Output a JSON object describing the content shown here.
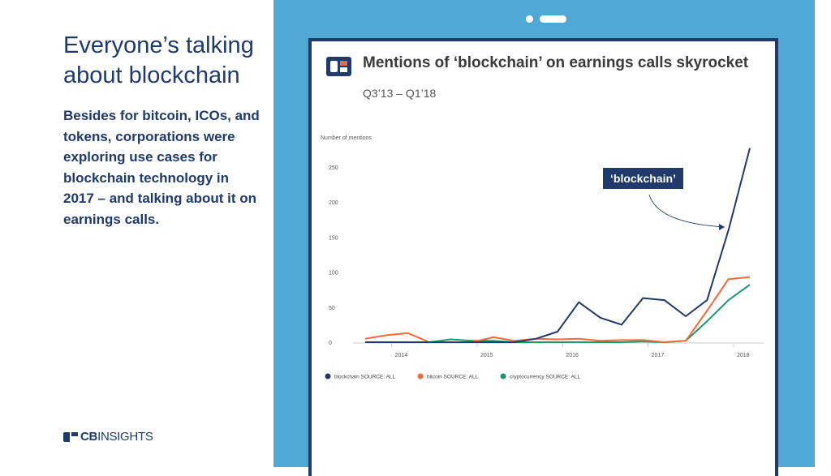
{
  "slide": {
    "title": "Everyone’s talking about blockchain",
    "body": "Besides for bitcoin, ICOs, and tokens, corporations were exploring use cases for blockchain technology in 2017 – and talking about it on earnings calls.",
    "logo_bold": "CB",
    "logo_light": "INSIGHTS"
  },
  "colors": {
    "navy": "#1f3a6b",
    "panel_blue": "#4fa9d4",
    "blockchain": "#1f3a6b",
    "bitcoin": "#f26b3a",
    "cryptocurrency": "#1a9a6c"
  },
  "annotation": {
    "label": "‘blockchain’"
  },
  "chart_data": {
    "type": "line",
    "title": "Mentions of ‘blockchain’ on earnings calls skyrocket",
    "subtitle": "Q3’13 – Q1’18",
    "ylabel": "Number of mentions",
    "xlabel": "",
    "ylim": [
      0,
      280
    ],
    "yticks": [
      0,
      50,
      100,
      150,
      200,
      250
    ],
    "xticks": [
      "2014",
      "2015",
      "2016",
      "2017",
      "2018"
    ],
    "x": [
      "Q3’13",
      "Q4’13",
      "Q1’14",
      "Q2’14",
      "Q3’14",
      "Q4’14",
      "Q1’15",
      "Q2’15",
      "Q3’15",
      "Q4’15",
      "Q1’16",
      "Q2’16",
      "Q3’16",
      "Q4’16",
      "Q1’17",
      "Q2’17",
      "Q3’17",
      "Q4’17",
      "Q1’18"
    ],
    "grid": false,
    "legend_position": "bottom-left",
    "series": [
      {
        "name": "blockchain SOURCE: ALL",
        "color": "#1f3a6b",
        "values": [
          0,
          0,
          0,
          0,
          0,
          0,
          0,
          0,
          5,
          15,
          57,
          35,
          25,
          63,
          60,
          37,
          60,
          160,
          277
        ]
      },
      {
        "name": "bitcoin SOURCE: ALL",
        "color": "#f26b3a",
        "values": [
          5,
          10,
          13,
          0,
          0,
          0,
          7,
          2,
          5,
          4,
          5,
          2,
          3,
          3,
          0,
          2,
          45,
          90,
          93
        ]
      },
      {
        "name": "cryptocurrency SOURCE: ALL",
        "color": "#1a9a6c",
        "values": [
          0,
          0,
          0,
          0,
          4,
          2,
          2,
          0,
          0,
          0,
          0,
          0,
          0,
          1,
          0,
          2,
          30,
          60,
          82
        ]
      }
    ]
  }
}
